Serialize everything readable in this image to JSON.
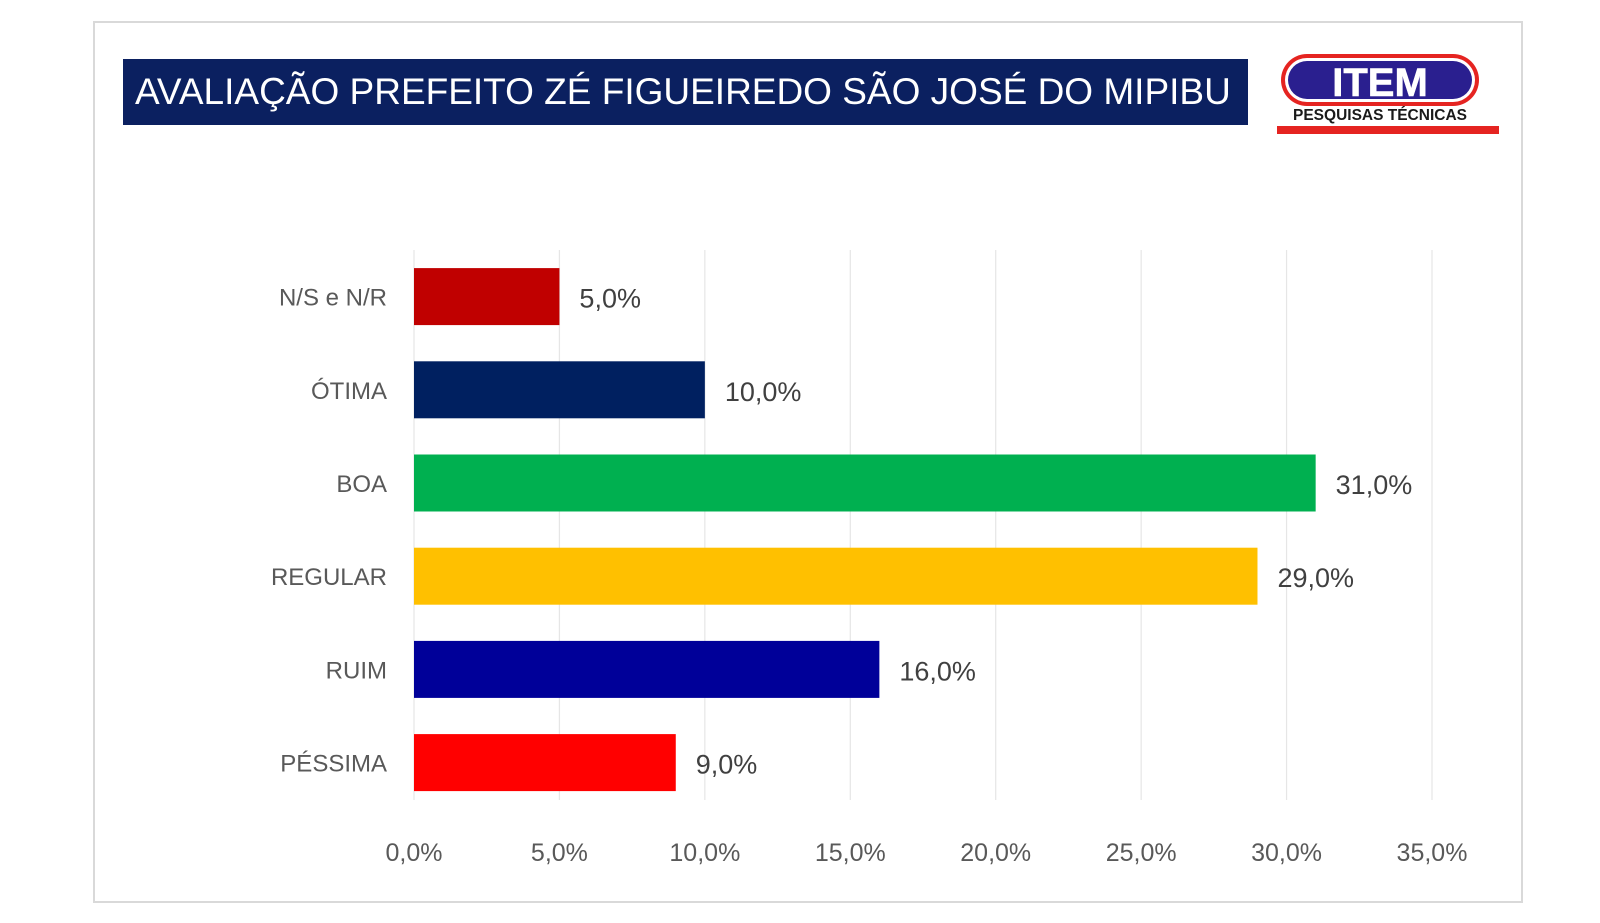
{
  "header": {
    "title": "AVALIAÇÃO PREFEITO ZÉ FIGUEIREDO SÃO JOSÉ DO MIPIBU"
  },
  "logo": {
    "name": "ITEM",
    "tagline": "PESQUISAS TÉCNICAS",
    "colors": {
      "fill": "#2a1f8f",
      "outline": "#e52421",
      "underline": "#e52421"
    }
  },
  "chart_data": {
    "type": "bar",
    "orientation": "horizontal",
    "title": "AVALIAÇÃO PREFEITO ZÉ FIGUEIREDO SÃO JOSÉ DO MIPIBU",
    "categories": [
      "N/S e N/R",
      "ÓTIMA",
      "BOA",
      "REGULAR",
      "RUIM",
      "PÉSSIMA"
    ],
    "values": [
      5.0,
      10.0,
      31.0,
      29.0,
      16.0,
      9.0
    ],
    "value_labels": [
      "5,0%",
      "10,0%",
      "31,0%",
      "29,0%",
      "16,0%",
      "9,0%"
    ],
    "colors": [
      "#c00000",
      "#002060",
      "#00b050",
      "#ffc000",
      "#000099",
      "#ff0000"
    ],
    "xlim": [
      0,
      35
    ],
    "x_ticks": [
      0,
      5,
      10,
      15,
      20,
      25,
      30,
      35
    ],
    "x_tick_labels": [
      "0,0%",
      "5,0%",
      "10,0%",
      "15,0%",
      "20,0%",
      "25,0%",
      "30,0%",
      "35,0%"
    ],
    "grid": true,
    "legend": "none",
    "xlabel": "",
    "ylabel": ""
  }
}
